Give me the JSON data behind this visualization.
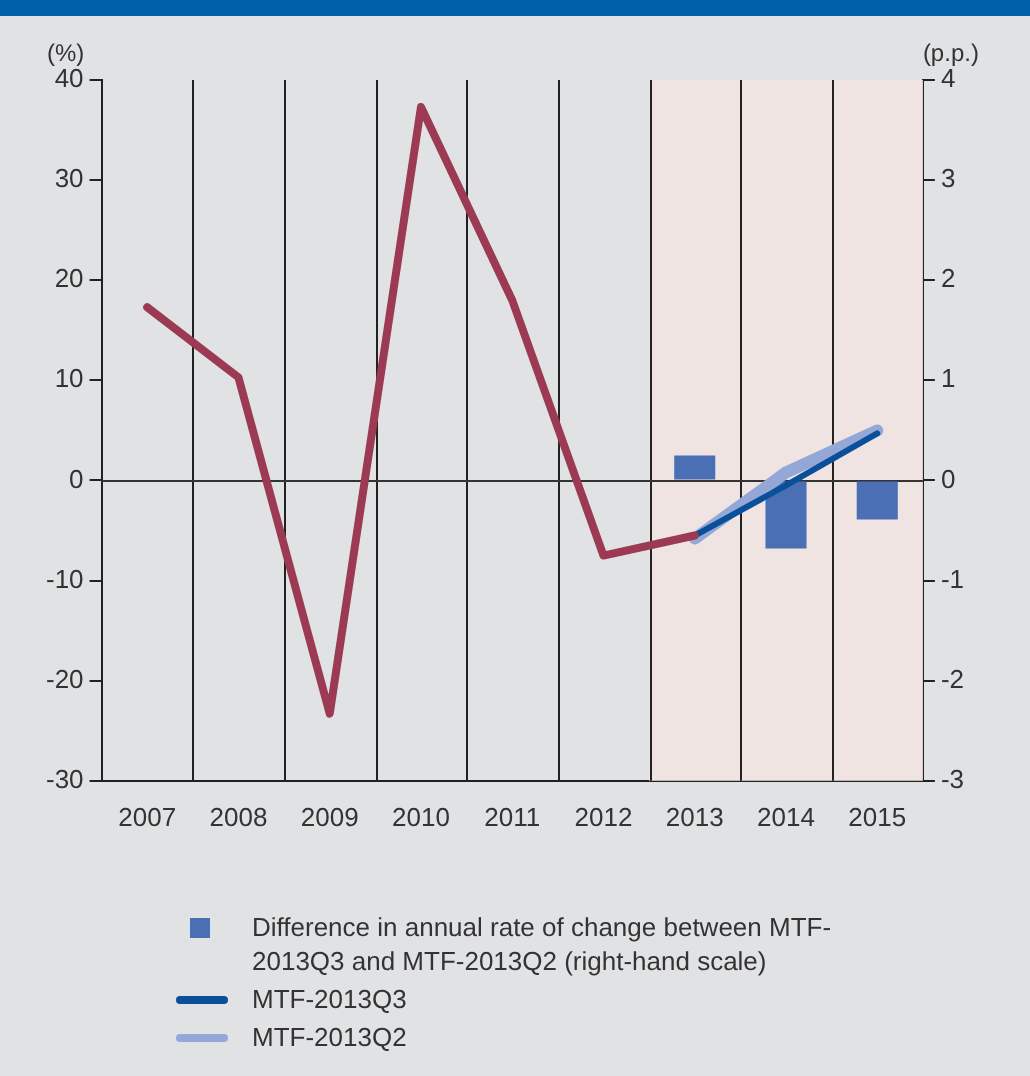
{
  "chart_data": {
    "type": "line",
    "ylabel": "(%)",
    "y2label": "(p.p.)",
    "categories": [
      "2007",
      "2008",
      "2009",
      "2010",
      "2011",
      "2012",
      "2013",
      "2014",
      "2015"
    ],
    "series": [
      {
        "color": "#9b3a52",
        "values": [
          17.3,
          10.3,
          -23.3,
          37.3,
          18,
          -7.5,
          -5.5,
          null,
          null
        ]
      },
      {
        "type": "bar",
        "axis": "y2",
        "name": "Difference in annual rate of change between MTF-2013Q3 and MTF-2013Q2 (right-hand scale)",
        "color": "#4a6fb5",
        "values": [
          null,
          null,
          null,
          null,
          null,
          null,
          0.25,
          -0.68,
          -0.39
        ]
      },
      {
        "name": "MTF-2013Q3",
        "color": "#0a4f9a",
        "values": [
          null,
          null,
          null,
          null,
          null,
          null,
          -5.5,
          -0.5,
          4.7
        ]
      },
      {
        "name": "MTF-2013Q2",
        "color": "#94a8d8",
        "values": [
          null,
          null,
          null,
          null,
          null,
          null,
          -5.8,
          0.8,
          5
        ]
      }
    ],
    "ylim": [
      -30,
      40
    ],
    "yticks": [
      -30,
      -20,
      -10,
      0,
      10,
      20,
      30,
      40
    ],
    "y2lim": [
      -3,
      4
    ],
    "y2ticks": [
      -3,
      -2,
      -1,
      0,
      1,
      2,
      3,
      4
    ],
    "grid": "x",
    "legend": "bottom",
    "marker": "none",
    "line_style": "solid",
    "ref_lines": [
      {
        "axis": "y",
        "value": 0,
        "color": "#333333"
      }
    ],
    "bands": [
      {
        "axis": "x",
        "from": "2013",
        "to": "2015",
        "color": "#efe4e2"
      }
    ]
  }
}
